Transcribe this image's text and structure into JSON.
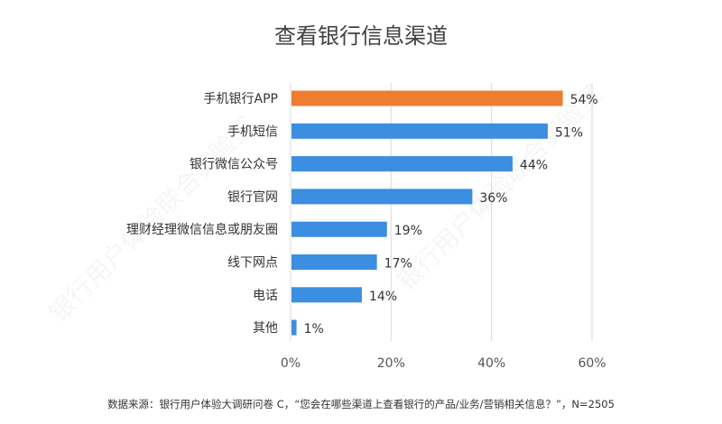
{
  "chart_data": {
    "type": "bar",
    "orientation": "horizontal",
    "title": "查看银行信息渠道",
    "categories": [
      "手机银行APP",
      "手机短信",
      "银行微信公众号",
      "银行官网",
      "理财经理微信信息或朋友圈",
      "线下网点",
      "电话",
      "其他"
    ],
    "values": [
      54,
      51,
      44,
      36,
      19,
      17,
      14,
      1
    ],
    "value_labels": [
      "54%",
      "51%",
      "44%",
      "36%",
      "19%",
      "17%",
      "14%",
      "1%"
    ],
    "highlight_index": 0,
    "x_ticks": [
      0,
      20,
      40,
      60
    ],
    "x_tick_labels": [
      "0%",
      "20%",
      "40%",
      "60%"
    ],
    "xlim": [
      0,
      60
    ],
    "grid": true,
    "colors": {
      "highlight": "#ED7D31",
      "bar": "#3B8EE0",
      "grid": "#D9D9D9"
    }
  },
  "footer": {
    "source": "数据来源：银行用户体验大调研问卷 C，“您会在哪些渠道上查看银行的产品/业务/营销相关信息？”，N=2505"
  },
  "watermark": {
    "text": "银行用户体验联合实验室"
  }
}
